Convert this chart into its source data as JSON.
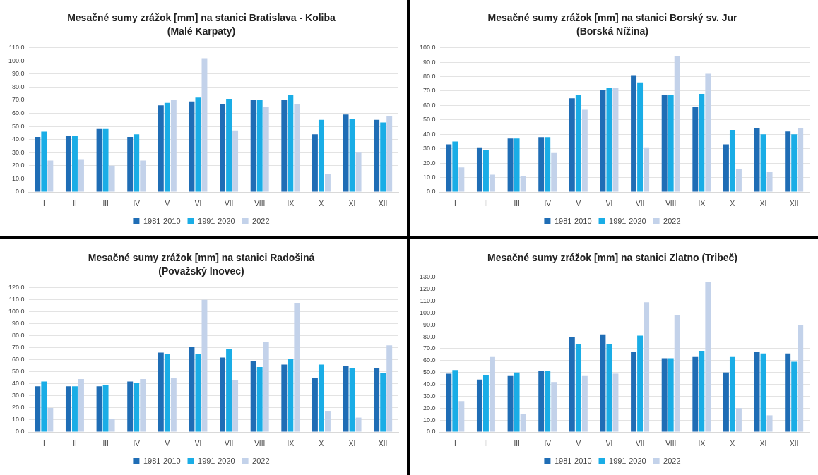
{
  "chart_data": [
    {
      "type": "bar",
      "title": "Mesačné sumy zrážok [mm] na stanici Bratislava - Koliba",
      "subtitle": "(Malé Karpaty)",
      "categories": [
        "I",
        "II",
        "III",
        "IV",
        "V",
        "VI",
        "VII",
        "VIII",
        "IX",
        "X",
        "XI",
        "XII"
      ],
      "series": [
        {
          "name": "1981-2010",
          "color": "#1f6db5",
          "values": [
            42,
            43,
            48,
            42,
            66,
            69,
            67,
            70,
            70,
            44,
            59,
            55
          ]
        },
        {
          "name": "1991-2020",
          "color": "#1aade6",
          "values": [
            46,
            43,
            48,
            44,
            68,
            72,
            71,
            70,
            74,
            55,
            56,
            53
          ]
        },
        {
          "name": "2022",
          "color": "#c3d2ea",
          "values": [
            24,
            25,
            20,
            24,
            70,
            102,
            47,
            65,
            67,
            14,
            30,
            58
          ]
        }
      ],
      "ylim": [
        0,
        110
      ],
      "yticks": [
        {
          "value": 0,
          "label": "0.0"
        },
        {
          "value": 10,
          "label": "10.0"
        },
        {
          "value": 20,
          "label": "20.0"
        },
        {
          "value": 30,
          "label": "30.0"
        },
        {
          "value": 40,
          "label": "40.0"
        },
        {
          "value": 50,
          "label": "50.0"
        },
        {
          "value": 60,
          "label": "60.0"
        },
        {
          "value": 70,
          "label": "70.0"
        },
        {
          "value": 80,
          "label": "80.0"
        },
        {
          "value": 90,
          "label": "90.0"
        },
        {
          "value": 100,
          "label": "100.0"
        },
        {
          "value": 110,
          "label": "110.0"
        }
      ],
      "grid": "y",
      "legend": "bottom"
    },
    {
      "type": "bar",
      "title": "Mesačné sumy zrážok [mm] na stanici Borský sv. Jur",
      "subtitle": "(Borská Nížina)",
      "categories": [
        "I",
        "II",
        "III",
        "IV",
        "V",
        "VI",
        "VII",
        "VIII",
        "IX",
        "X",
        "XI",
        "XII"
      ],
      "series": [
        {
          "name": "1981-2010",
          "color": "#1f6db5",
          "values": [
            33,
            31,
            37,
            38,
            65,
            71,
            81,
            67,
            59,
            33,
            44,
            42
          ]
        },
        {
          "name": "1991-2020",
          "color": "#1aade6",
          "values": [
            35,
            29,
            37,
            38,
            67,
            72,
            76,
            67,
            68,
            43,
            40,
            40
          ]
        },
        {
          "name": "2022",
          "color": "#c3d2ea",
          "values": [
            17,
            12,
            11,
            27,
            57,
            72,
            31,
            94,
            82,
            16,
            14,
            44
          ]
        }
      ],
      "ylim": [
        0,
        100
      ],
      "yticks": [
        {
          "value": 0,
          "label": "0.0"
        },
        {
          "value": 10,
          "label": "10.0"
        },
        {
          "value": 20,
          "label": "20.0"
        },
        {
          "value": 30,
          "label": "30.0"
        },
        {
          "value": 40,
          "label": "40.0"
        },
        {
          "value": 50,
          "label": "50.0"
        },
        {
          "value": 60,
          "label": "60.0"
        },
        {
          "value": 70,
          "label": "70.0"
        },
        {
          "value": 80,
          "label": "80.0"
        },
        {
          "value": 90,
          "label": "90.0"
        },
        {
          "value": 100,
          "label": "100.0"
        }
      ],
      "grid": "y",
      "legend": "bottom"
    },
    {
      "type": "bar",
      "title": "Mesačné sumy zrážok [mm] na stanici Radošiná",
      "subtitle": "(Považský Inovec)",
      "categories": [
        "I",
        "II",
        "III",
        "IV",
        "V",
        "VI",
        "VII",
        "VIII",
        "IX",
        "X",
        "XI",
        "XII"
      ],
      "series": [
        {
          "name": "1981-2010",
          "color": "#1f6db5",
          "values": [
            38,
            38,
            38,
            42,
            66,
            71,
            62,
            59,
            56,
            45,
            55,
            53
          ]
        },
        {
          "name": "1991-2020",
          "color": "#1aade6",
          "values": [
            42,
            38,
            39,
            41,
            65,
            65,
            69,
            54,
            61,
            56,
            53,
            49
          ]
        },
        {
          "name": "2022",
          "color": "#c3d2ea",
          "values": [
            20,
            44,
            11,
            44,
            45,
            110,
            43,
            75,
            107,
            17,
            12,
            72
          ]
        }
      ],
      "ylim": [
        0,
        120
      ],
      "yticks": [
        {
          "value": 0,
          "label": "0.0"
        },
        {
          "value": 10,
          "label": "10.0"
        },
        {
          "value": 20,
          "label": "20.0"
        },
        {
          "value": 30,
          "label": "30.0"
        },
        {
          "value": 40,
          "label": "40.0"
        },
        {
          "value": 50,
          "label": "50.0"
        },
        {
          "value": 60,
          "label": "60.0"
        },
        {
          "value": 70,
          "label": "70.0"
        },
        {
          "value": 80,
          "label": "80.0"
        },
        {
          "value": 90,
          "label": "90.0"
        },
        {
          "value": 100,
          "label": "100.0"
        },
        {
          "value": 110,
          "label": "110.0"
        },
        {
          "value": 120,
          "label": "120.0"
        }
      ],
      "grid": "y",
      "legend": "bottom"
    },
    {
      "type": "bar",
      "title": "Mesačné sumy zrážok [mm] na stanici Zlatno (Tribeč)",
      "categories": [
        "I",
        "II",
        "III",
        "IV",
        "V",
        "VI",
        "VII",
        "VIII",
        "IX",
        "X",
        "XI",
        "XII"
      ],
      "series": [
        {
          "name": "1981-2010",
          "color": "#1f6db5",
          "values": [
            49,
            44,
            47,
            51,
            80,
            82,
            67,
            62,
            63,
            50,
            67,
            66
          ]
        },
        {
          "name": "1991-2020",
          "color": "#1aade6",
          "values": [
            52,
            48,
            50,
            51,
            74,
            74,
            81,
            62,
            68,
            63,
            66,
            59
          ]
        },
        {
          "name": "2022",
          "color": "#c3d2ea",
          "values": [
            26,
            63,
            15,
            42,
            47,
            49,
            109,
            98,
            126,
            20,
            14,
            90
          ]
        }
      ],
      "ylim": [
        0,
        130
      ],
      "yticks": [
        {
          "value": 0,
          "label": "0.0"
        },
        {
          "value": 10,
          "label": "10.0"
        },
        {
          "value": 20,
          "label": "20.0"
        },
        {
          "value": 30,
          "label": "30.0"
        },
        {
          "value": 40,
          "label": "40.0"
        },
        {
          "value": 50,
          "label": "50.0"
        },
        {
          "value": 60,
          "label": "60.0"
        },
        {
          "value": 70,
          "label": "70.0"
        },
        {
          "value": 80,
          "label": "80.0"
        },
        {
          "value": 90,
          "label": "90.0"
        },
        {
          "value": 100,
          "label": "100.0"
        },
        {
          "value": 110,
          "label": "110.0"
        },
        {
          "value": 120,
          "label": "120.0"
        },
        {
          "value": 130,
          "label": "130.0"
        }
      ],
      "grid": "y",
      "legend": "bottom"
    }
  ]
}
